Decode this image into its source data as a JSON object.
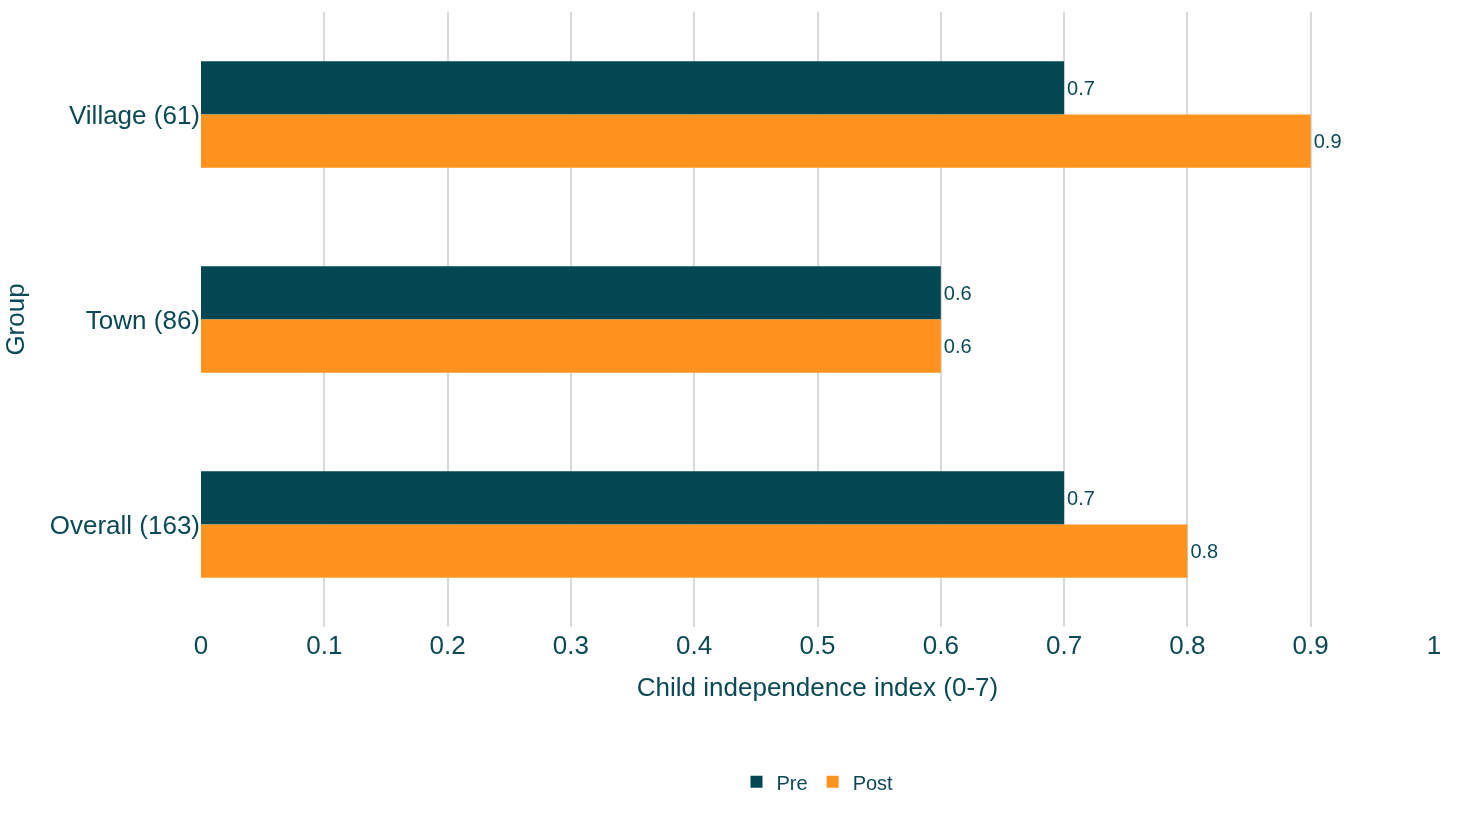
{
  "chart_data": {
    "type": "bar",
    "orientation": "horizontal",
    "xlabel": "Child independence index (0-7)",
    "ylabel": "Group",
    "categories": [
      "Village (61)",
      "Town (86)",
      "Overall (163)"
    ],
    "series": [
      {
        "name": "Pre",
        "color": "#024751",
        "values": [
          0.7,
          0.6,
          0.7
        ]
      },
      {
        "name": "Post",
        "color": "#ff931e",
        "values": [
          0.9,
          0.6,
          0.8
        ]
      }
    ],
    "xlim": [
      0,
      1
    ],
    "xticks": [
      0,
      0.1,
      0.2,
      0.3,
      0.4,
      0.5,
      0.6,
      0.7,
      0.8,
      0.9,
      1
    ],
    "grid": "x",
    "legend": "bottom",
    "data_labels": true
  }
}
